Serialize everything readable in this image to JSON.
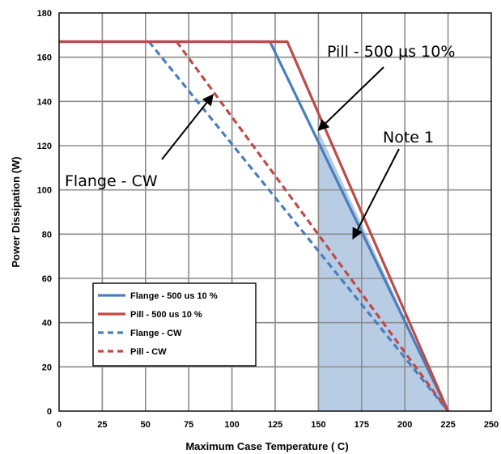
{
  "chart_data": {
    "type": "line",
    "title": "",
    "xlabel": "Maximum Case Temperature ( C)",
    "ylabel": "Power Dissipation (W)",
    "xlim": [
      0,
      250
    ],
    "ylim": [
      0,
      180
    ],
    "xticks": [
      "0",
      "25",
      "50",
      "75",
      "100",
      "125",
      "150",
      "175",
      "200",
      "225",
      "250"
    ],
    "yticks": [
      "0",
      "20",
      "40",
      "60",
      "80",
      "100",
      "120",
      "140",
      "160",
      "180"
    ],
    "grid": true,
    "legend_position": "bottom-left",
    "series": [
      {
        "name": "Flange - 500 us 10 %",
        "style": "solid",
        "color": "#4a7ebb",
        "x": [
          0,
          122,
          225
        ],
        "y": [
          167,
          167,
          0
        ]
      },
      {
        "name": "Pill - 500 us 10 %",
        "style": "solid",
        "color": "#be4b48",
        "x": [
          0,
          132,
          225
        ],
        "y": [
          167,
          167,
          0
        ]
      },
      {
        "name": "Flange - CW",
        "style": "dashed",
        "color": "#4a7ebb",
        "x": [
          52,
          225
        ],
        "y": [
          167,
          0
        ]
      },
      {
        "name": "Pill - CW",
        "style": "dashed",
        "color": "#be4b48",
        "x": [
          68,
          225
        ],
        "y": [
          167,
          0
        ]
      }
    ],
    "shaded_region": {
      "color": "#b8cce4",
      "x": [
        150,
        150,
        225
      ],
      "y": [
        0,
        127,
        0
      ]
    },
    "annotations": [
      {
        "text": "Pill - 500 µs 10%",
        "arrow_to": [
          150,
          127
        ]
      },
      {
        "text": "Note 1",
        "arrow_to": [
          170,
          78
        ]
      },
      {
        "text": "Flange - CW",
        "arrow_to": [
          89,
          143
        ]
      }
    ]
  }
}
